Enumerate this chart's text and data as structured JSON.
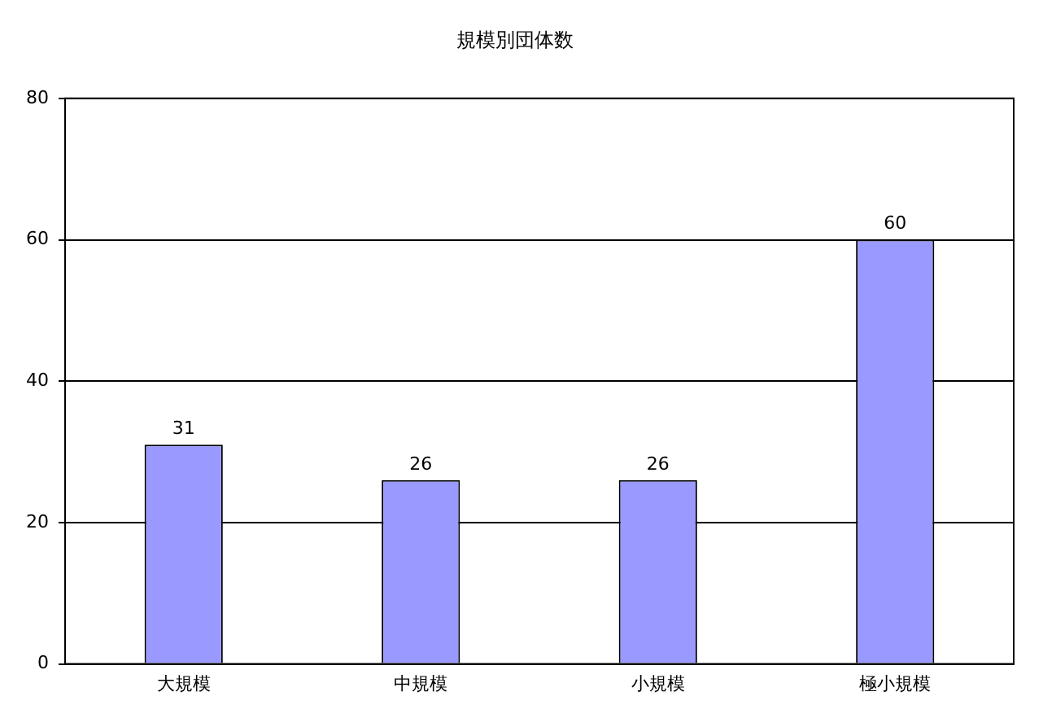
{
  "chart_data": {
    "type": "bar",
    "title": "規模別団体数",
    "categories": [
      "大規模",
      "中規模",
      "小規模",
      "極小規模"
    ],
    "values": [
      31,
      26,
      26,
      60
    ],
    "color": "#9999ff",
    "ylim": [
      0,
      80
    ],
    "yticks": [
      0,
      20,
      40,
      60,
      80
    ],
    "grid": "y",
    "data_labels": true
  }
}
